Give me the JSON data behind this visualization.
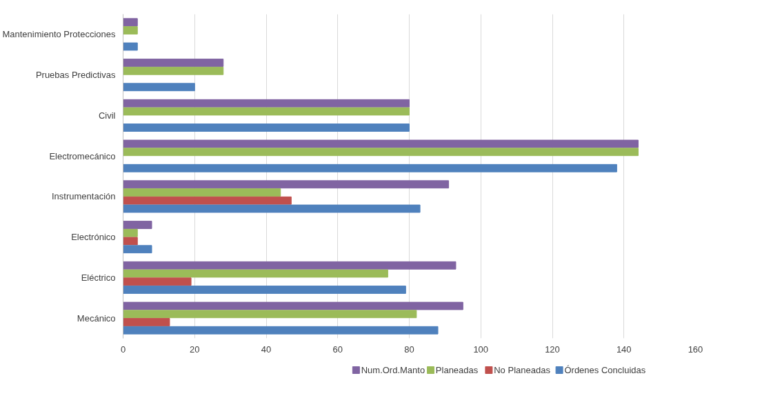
{
  "chart_data": {
    "type": "bar",
    "orientation": "horizontal",
    "categories": [
      "Mantenimiento Protecciones",
      "Pruebas Predictivas",
      "Civil",
      "Electromecánico",
      "Instrumentación",
      "Electrónico",
      "Eléctrico",
      "Mecánico"
    ],
    "series": [
      {
        "name": "Num.Ord.Manto",
        "color": "#8064a2",
        "values": [
          4,
          28,
          80,
          144,
          91,
          8,
          93,
          95
        ]
      },
      {
        "name": "Planeadas",
        "color": "#9bbb59",
        "values": [
          4,
          28,
          80,
          144,
          44,
          4,
          74,
          82
        ]
      },
      {
        "name": "No Planeadas",
        "color": "#c0504d",
        "values": [
          0,
          0,
          0,
          0,
          47,
          4,
          19,
          13
        ]
      },
      {
        "name": "Órdenes Concluidas",
        "color": "#4f81bd",
        "values": [
          4,
          20,
          80,
          138,
          83,
          8,
          79,
          88
        ]
      }
    ],
    "xlim": [
      0,
      160
    ],
    "xticks": [
      0,
      20,
      40,
      60,
      80,
      100,
      120,
      140,
      160
    ],
    "grid": "x",
    "legend": "bottom"
  }
}
